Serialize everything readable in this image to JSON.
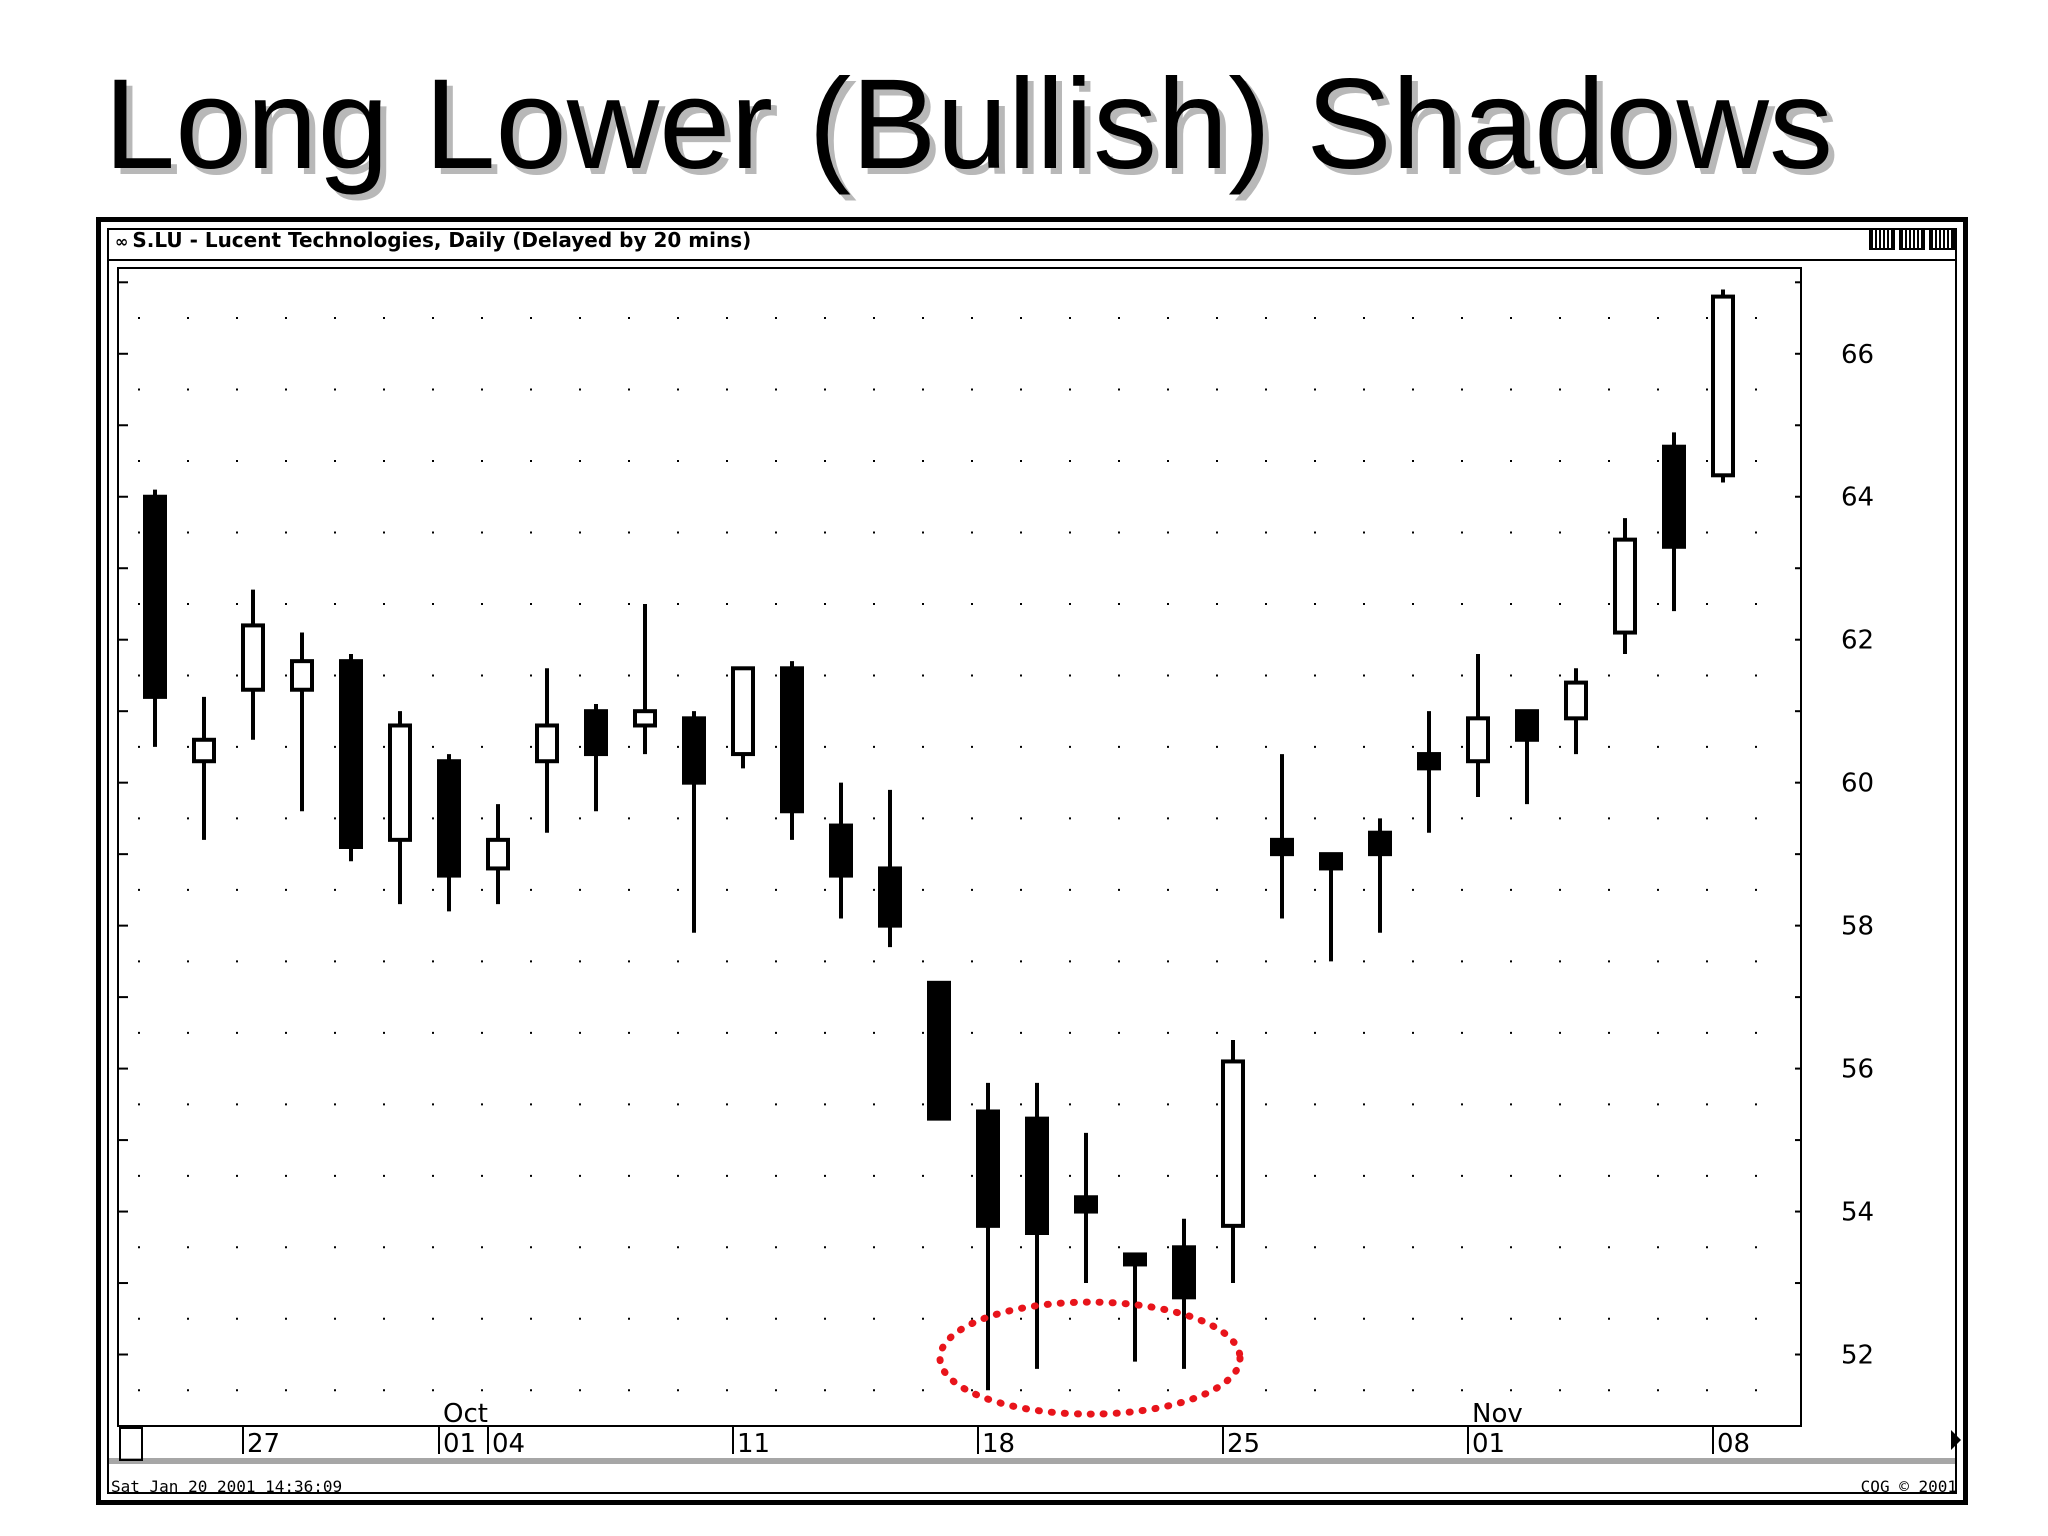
{
  "slide": {
    "title": "Long Lower (Bullish) Shadows"
  },
  "window": {
    "title": "S.LU - Lucent Technologies, Daily (Delayed by 20 mins)",
    "status_left": "Sat Jan 20 2001 14:36:09",
    "status_right": "CQG © 2001"
  },
  "chart_data": {
    "type": "candlestick",
    "title": "S.LU - Lucent Technologies, Daily (Delayed by 20 mins)",
    "ylim": [
      51,
      67.2
    ],
    "y_ticks": [
      52,
      54,
      56,
      58,
      60,
      62,
      64,
      66
    ],
    "x_ticks": [
      {
        "label": "27",
        "index": 2
      },
      {
        "label": "01",
        "index": 6
      },
      {
        "label": "04",
        "index": 7
      },
      {
        "label": "11",
        "index": 12
      },
      {
        "label": "18",
        "index": 17
      },
      {
        "label": "25",
        "index": 22
      },
      {
        "label": "01",
        "index": 27
      },
      {
        "label": "08",
        "index": 32
      }
    ],
    "month_labels": [
      {
        "label": "Oct",
        "index": 6
      },
      {
        "label": "Nov",
        "index": 27
      }
    ],
    "candles": [
      {
        "o": 64.0,
        "h": 64.1,
        "l": 60.5,
        "c": 61.2
      },
      {
        "o": 60.3,
        "h": 61.2,
        "l": 59.2,
        "c": 60.6
      },
      {
        "o": 61.3,
        "h": 62.7,
        "l": 60.6,
        "c": 62.2
      },
      {
        "o": 61.3,
        "h": 62.1,
        "l": 59.6,
        "c": 61.7
      },
      {
        "o": 61.7,
        "h": 61.8,
        "l": 58.9,
        "c": 59.1
      },
      {
        "o": 59.2,
        "h": 61.0,
        "l": 58.3,
        "c": 60.8
      },
      {
        "o": 60.3,
        "h": 60.4,
        "l": 58.2,
        "c": 58.7
      },
      {
        "o": 58.8,
        "h": 59.7,
        "l": 58.3,
        "c": 59.2
      },
      {
        "o": 60.3,
        "h": 61.6,
        "l": 59.3,
        "c": 60.8
      },
      {
        "o": 61.0,
        "h": 61.1,
        "l": 59.6,
        "c": 60.4
      },
      {
        "o": 60.8,
        "h": 62.5,
        "l": 60.4,
        "c": 61.0
      },
      {
        "o": 60.9,
        "h": 61.0,
        "l": 57.9,
        "c": 60.0
      },
      {
        "o": 60.4,
        "h": 61.6,
        "l": 60.2,
        "c": 61.6
      },
      {
        "o": 61.6,
        "h": 61.7,
        "l": 59.2,
        "c": 59.6
      },
      {
        "o": 59.4,
        "h": 60.0,
        "l": 58.1,
        "c": 58.7
      },
      {
        "o": 58.8,
        "h": 59.9,
        "l": 57.7,
        "c": 58.0
      },
      {
        "o": 57.2,
        "h": 57.2,
        "l": 55.3,
        "c": 55.3
      },
      {
        "o": 55.4,
        "h": 55.8,
        "l": 51.5,
        "c": 53.8
      },
      {
        "o": 55.3,
        "h": 55.8,
        "l": 51.8,
        "c": 53.7
      },
      {
        "o": 54.2,
        "h": 55.1,
        "l": 53.0,
        "c": 54.0
      },
      {
        "o": 53.4,
        "h": 53.4,
        "l": 51.9,
        "c": 53.4
      },
      {
        "o": 53.5,
        "h": 53.9,
        "l": 51.8,
        "c": 52.8
      },
      {
        "o": 53.8,
        "h": 56.4,
        "l": 53.0,
        "c": 56.1
      },
      {
        "o": 59.2,
        "h": 60.4,
        "l": 58.1,
        "c": 59.0
      },
      {
        "o": 59.0,
        "h": 59.0,
        "l": 57.5,
        "c": 58.8
      },
      {
        "o": 59.3,
        "h": 59.5,
        "l": 57.9,
        "c": 59.0
      },
      {
        "o": 60.4,
        "h": 61.0,
        "l": 59.3,
        "c": 60.2
      },
      {
        "o": 60.3,
        "h": 61.8,
        "l": 59.8,
        "c": 60.9
      },
      {
        "o": 61.0,
        "h": 61.0,
        "l": 59.7,
        "c": 60.6
      },
      {
        "o": 60.9,
        "h": 61.6,
        "l": 60.4,
        "c": 61.4
      },
      {
        "o": 62.1,
        "h": 63.7,
        "l": 61.8,
        "c": 63.4
      },
      {
        "o": 64.7,
        "h": 64.9,
        "l": 62.4,
        "c": 63.3
      },
      {
        "o": 64.3,
        "h": 66.9,
        "l": 64.2,
        "c": 66.8
      }
    ],
    "annotation": "red dotted ellipse around long lower shadows near 52",
    "grid": "dotted",
    "colors": {
      "bearish": "#000000",
      "bullish": "#ffffff",
      "annotation": "#e8141b"
    }
  }
}
